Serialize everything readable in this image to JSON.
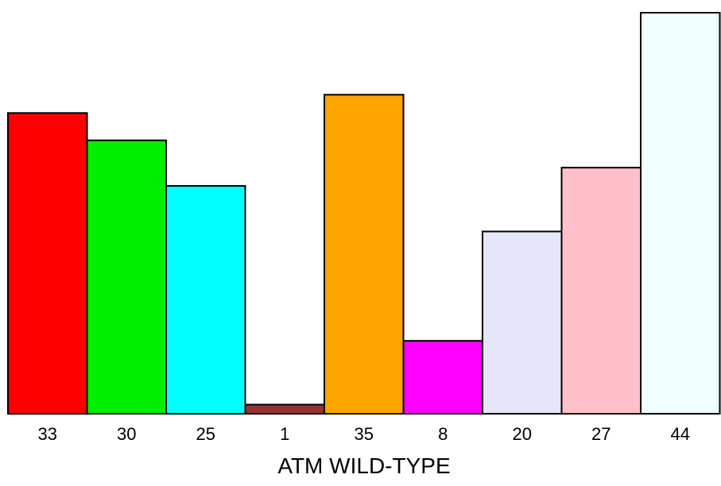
{
  "chart_data": {
    "type": "bar",
    "title": "",
    "xlabel": "ATM WILD-TYPE",
    "ylabel": "",
    "categories": [
      "33",
      "30",
      "25",
      "1",
      "35",
      "8",
      "20",
      "27",
      "44"
    ],
    "values": [
      33,
      30,
      25,
      1,
      35,
      8,
      20,
      27,
      44
    ],
    "colors": [
      "#ff0000",
      "#00ee00",
      "#00ffff",
      "#993333",
      "#ffa500",
      "#ff00ff",
      "#e6e6fa",
      "#ffc0cb",
      "#f0ffff"
    ],
    "ylim": [
      0,
      44
    ],
    "grid": false,
    "legend": "none"
  }
}
